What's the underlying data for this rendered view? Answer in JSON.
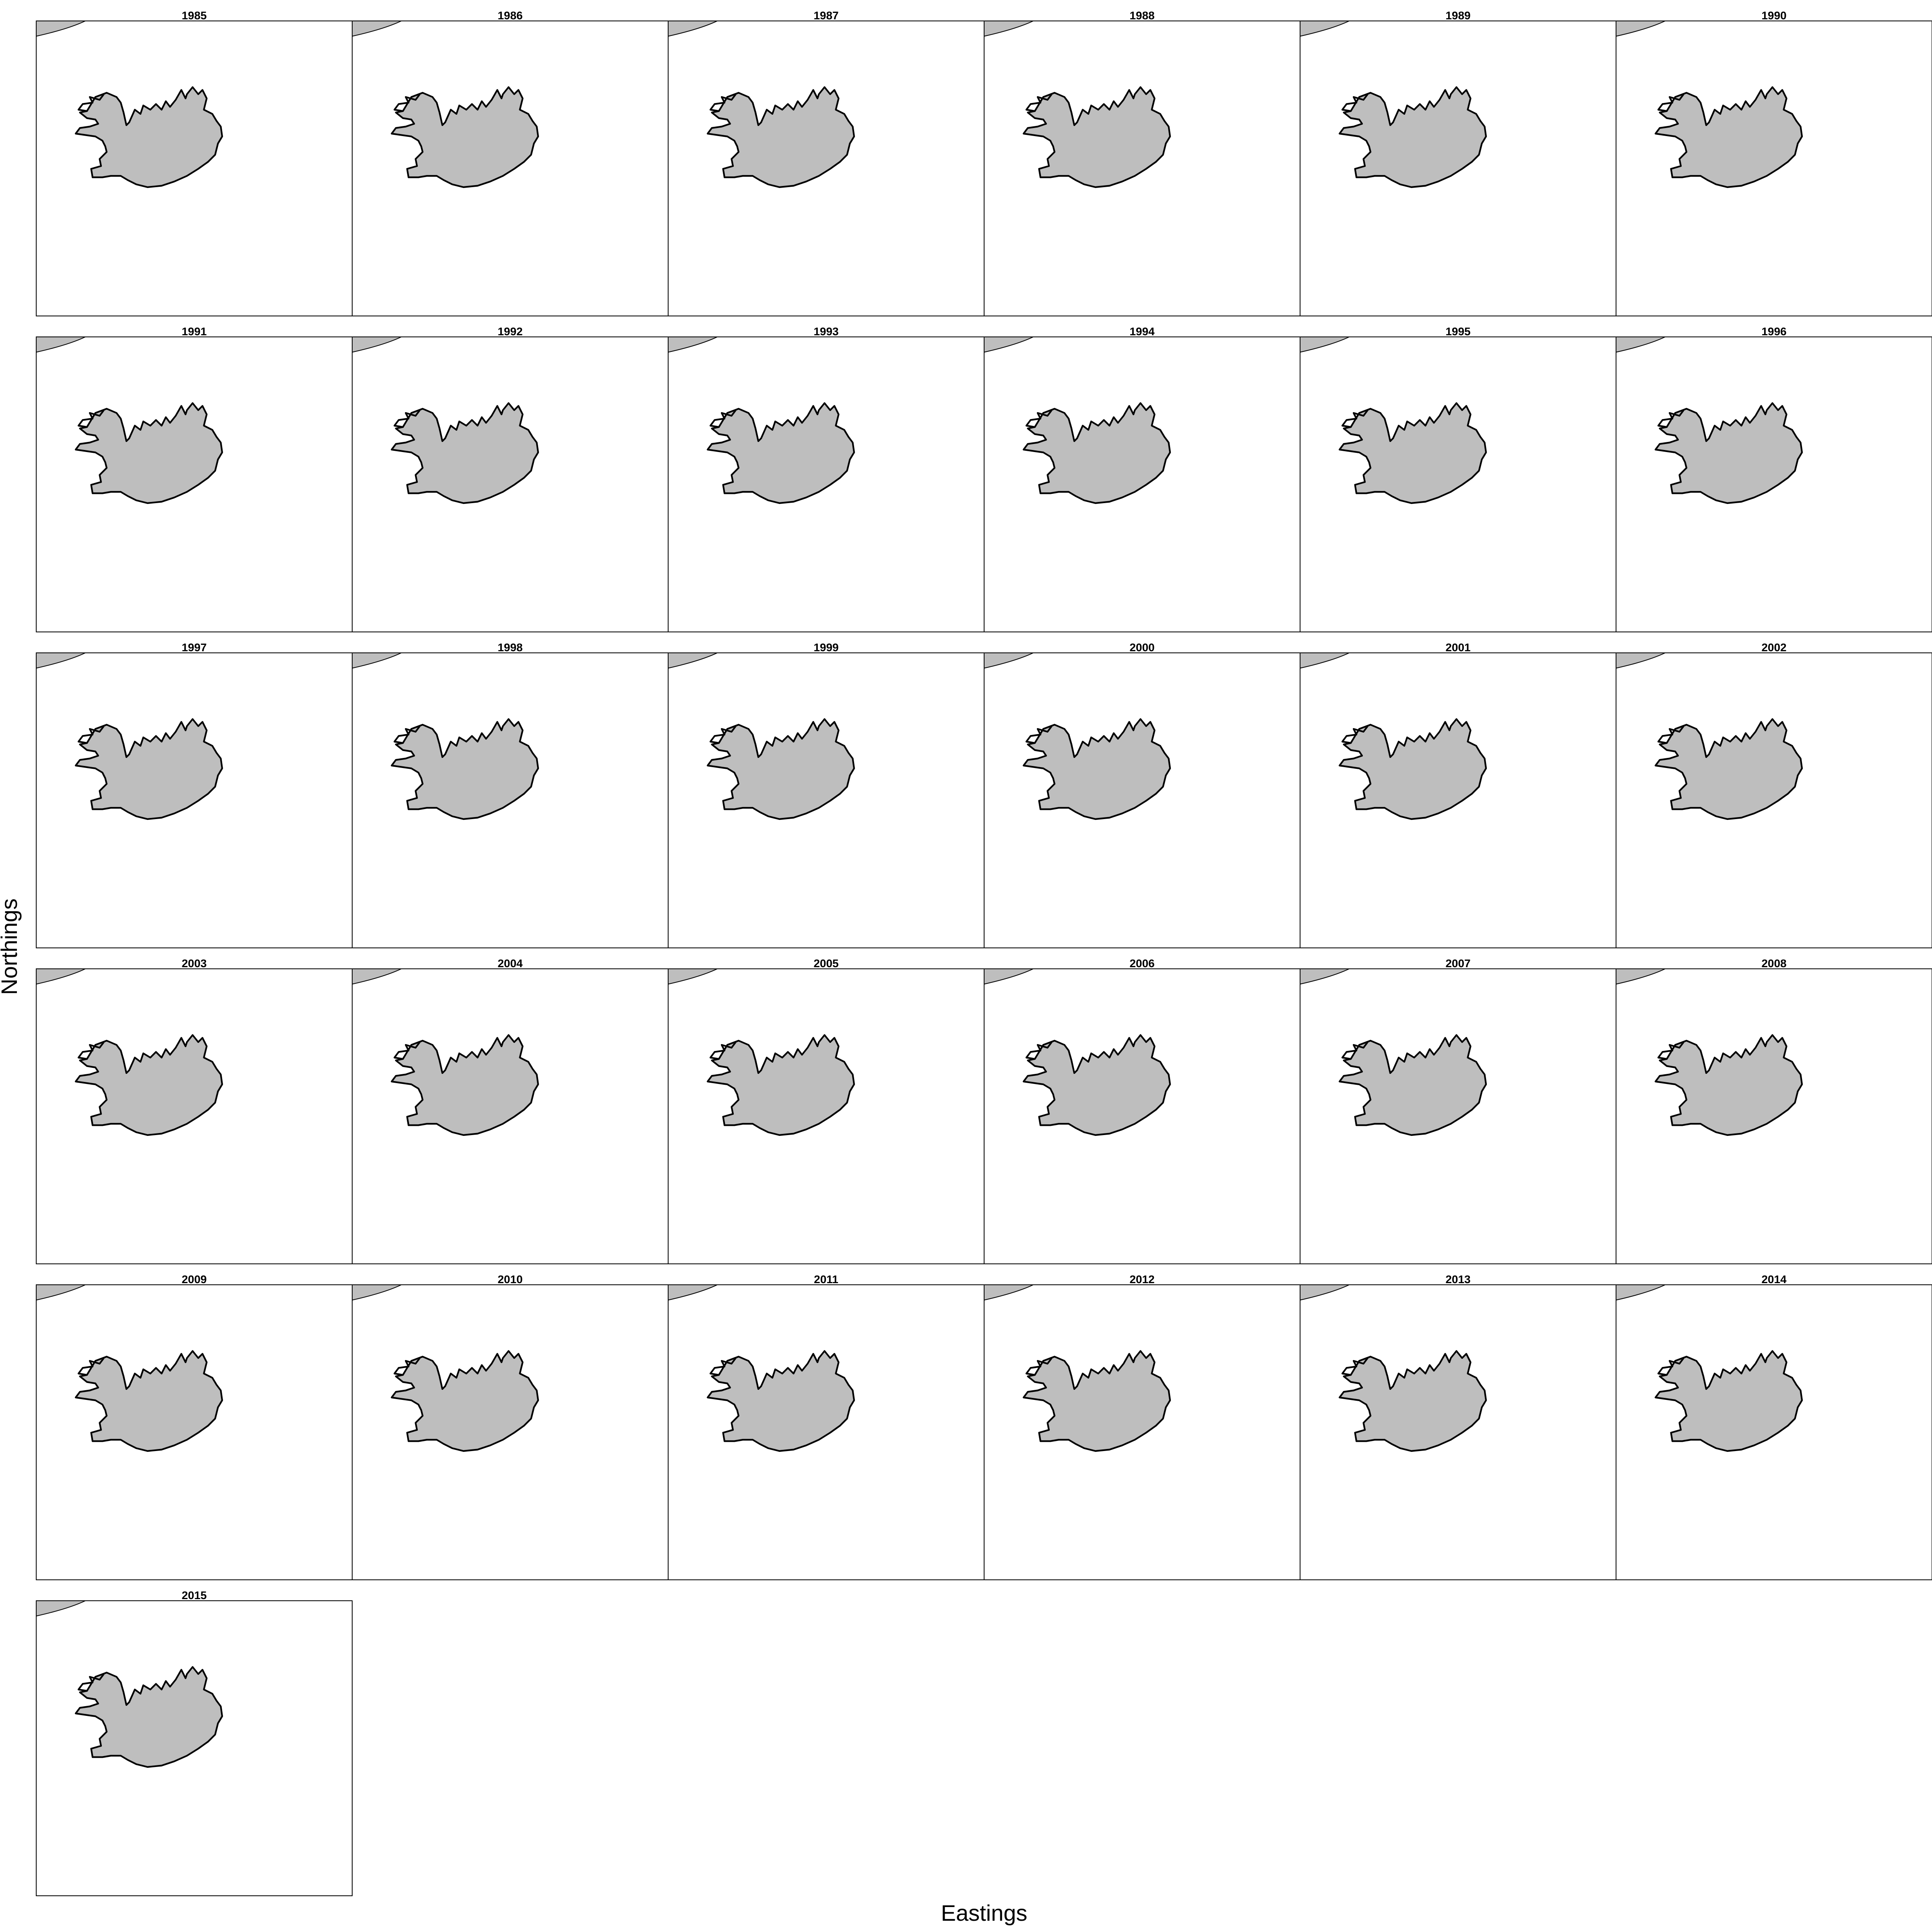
{
  "figure": {
    "xlabel": "Eastings",
    "ylabel": "Northings",
    "columns": 6,
    "panels": [
      {
        "title": "1985"
      },
      {
        "title": "1986"
      },
      {
        "title": "1987"
      },
      {
        "title": "1988"
      },
      {
        "title": "1989"
      },
      {
        "title": "1990"
      },
      {
        "title": "1991"
      },
      {
        "title": "1992"
      },
      {
        "title": "1993"
      },
      {
        "title": "1994"
      },
      {
        "title": "1995"
      },
      {
        "title": "1996"
      },
      {
        "title": "1997"
      },
      {
        "title": "1998"
      },
      {
        "title": "1999"
      },
      {
        "title": "2000"
      },
      {
        "title": "2001"
      },
      {
        "title": "2002"
      },
      {
        "title": "2003"
      },
      {
        "title": "2004"
      },
      {
        "title": "2005"
      },
      {
        "title": "2006"
      },
      {
        "title": "2007"
      },
      {
        "title": "2008"
      },
      {
        "title": "2009"
      },
      {
        "title": "2010"
      },
      {
        "title": "2011"
      },
      {
        "title": "2012"
      },
      {
        "title": "2013"
      },
      {
        "title": "2014"
      },
      {
        "title": "2015"
      }
    ],
    "colors": {
      "land": "#bebebe",
      "outline": "#000000",
      "background": "#ffffff"
    }
  }
}
